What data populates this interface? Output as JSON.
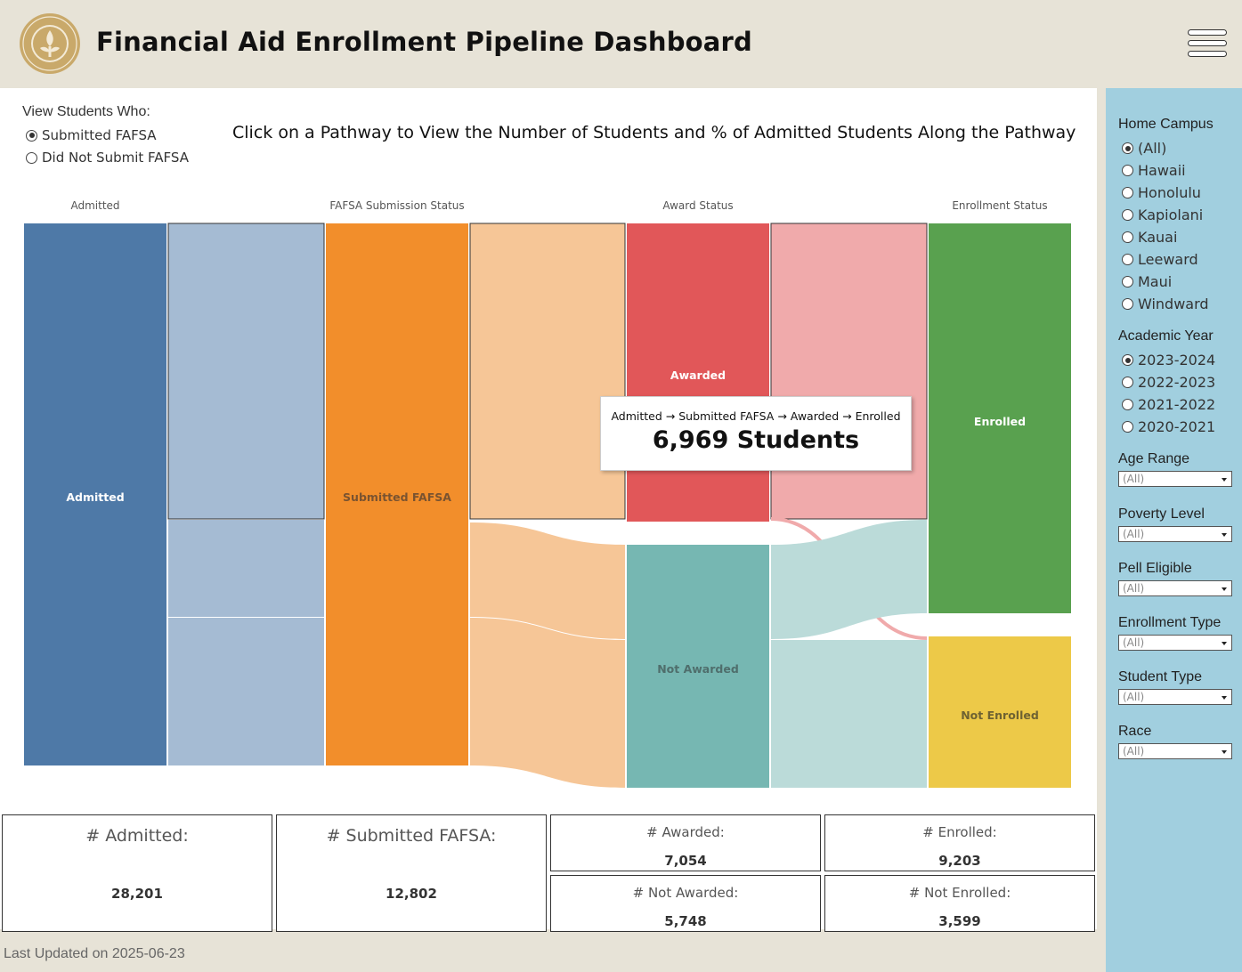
{
  "header": {
    "title": "Financial Aid Enrollment Pipeline Dashboard",
    "logo_icon": "university-seal-icon",
    "menu_icon": "hamburger-menu-icon"
  },
  "view_students": {
    "label": "View Students Who:",
    "options": [
      "Submitted FAFSA",
      "Did Not Submit FAFSA"
    ],
    "selected": "Submitted FAFSA"
  },
  "instruction": "Click on a Pathway to View the Number of Students and % of Admitted Students Along the Pathway",
  "columns": [
    "Admitted",
    "FAFSA Submission Status",
    "Award Status",
    "Enrollment Status"
  ],
  "nodes": {
    "admitted": "Admitted",
    "submitted_fafsa": "Submitted FAFSA",
    "awarded": "Awarded",
    "not_awarded": "Not Awarded",
    "enrolled": "Enrolled",
    "not_enrolled": "Not Enrolled"
  },
  "colors": {
    "admitted": "#4e79a7",
    "submitted_fafsa": "#f28e2b",
    "awarded": "#e15759",
    "not_awarded": "#76b7b2",
    "enrolled": "#59a14f",
    "not_enrolled": "#edc948",
    "sidebar": "#a1cfdf",
    "header": "#e7e3d7"
  },
  "tooltip": {
    "path": "Admitted → Submitted FAFSA → Awarded → Enrolled",
    "count": "6,969 Students"
  },
  "summary": {
    "admitted": {
      "label": "# Admitted:",
      "value": "28,201"
    },
    "submitted_fafsa": {
      "label": "# Submitted FAFSA:",
      "value": "12,802"
    },
    "awarded": {
      "label": "# Awarded:",
      "value": "7,054"
    },
    "not_awarded": {
      "label": "# Not Awarded:",
      "value": "5,748"
    },
    "enrolled": {
      "label": "# Enrolled:",
      "value": "9,203"
    },
    "not_enrolled": {
      "label": "# Not Enrolled:",
      "value": "3,599"
    }
  },
  "footer": "Last Updated on 2025-06-23",
  "filters": {
    "home_campus": {
      "label": "Home Campus",
      "options": [
        "(All)",
        "Hawaii",
        "Honolulu",
        "Kapiolani",
        "Kauai",
        "Leeward",
        "Maui",
        "Windward"
      ],
      "selected": "(All)"
    },
    "academic_year": {
      "label": "Academic Year",
      "options": [
        "2023-2024",
        "2022-2023",
        "2021-2022",
        "2020-2021"
      ],
      "selected": "2023-2024"
    },
    "dropdowns": [
      {
        "label": "Age Range",
        "value": "(All)"
      },
      {
        "label": "Poverty Level",
        "value": "(All)"
      },
      {
        "label": "Pell Eligible",
        "value": "(All)"
      },
      {
        "label": "Enrollment Type",
        "value": "(All)"
      },
      {
        "label": "Student Type",
        "value": "(All)"
      },
      {
        "label": "Race",
        "value": "(All)"
      }
    ]
  }
}
